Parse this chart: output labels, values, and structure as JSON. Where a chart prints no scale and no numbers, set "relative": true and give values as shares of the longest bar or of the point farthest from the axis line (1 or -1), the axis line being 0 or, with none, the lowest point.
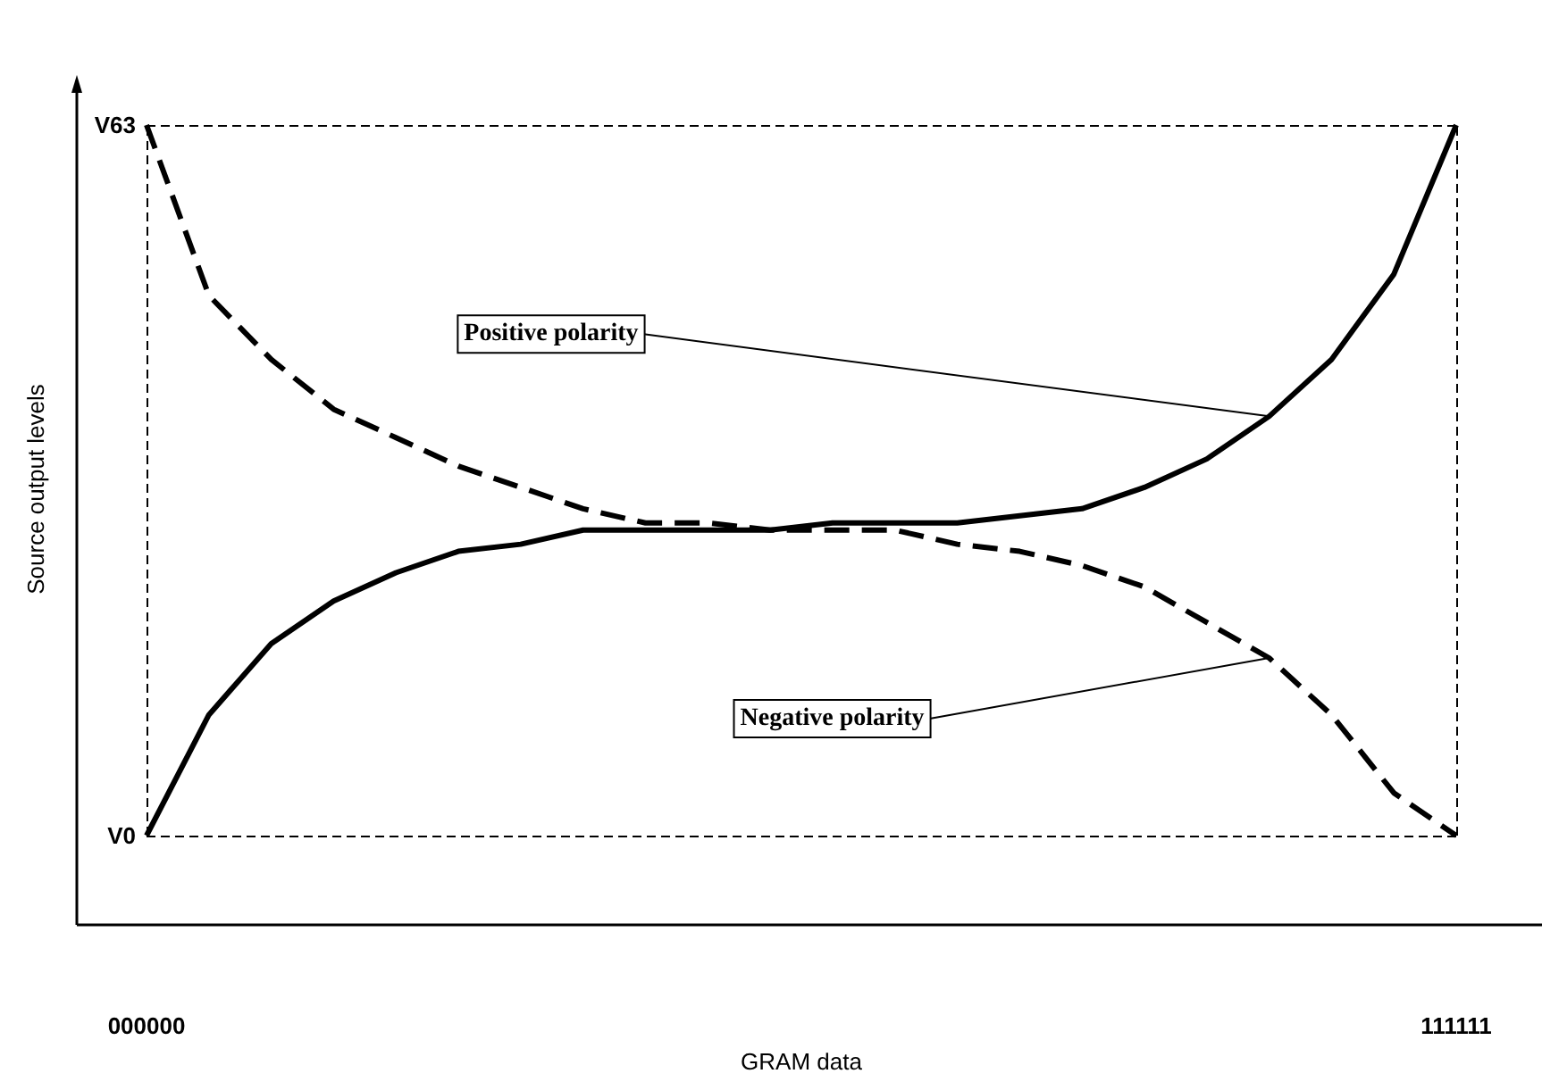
{
  "chart_data": {
    "type": "line",
    "xlabel": "GRAM data",
    "ylabel": "Source output levels",
    "relative": true,
    "categories": [
      "000000",
      null,
      null,
      null,
      null,
      null,
      null,
      null,
      null,
      null,
      null,
      null,
      null,
      null,
      null,
      null,
      null,
      null,
      null,
      null,
      null,
      "111111"
    ],
    "grid": false,
    "marker": "none",
    "series": [
      {
        "color": "#000000",
        "line_style": "solid",
        "values": [
          0,
          0.17,
          0.27,
          0.33,
          0.37,
          0.4,
          0.41,
          0.43,
          0.43,
          0.43,
          0.43,
          0.44,
          0.44,
          0.44,
          0.45,
          0.46,
          0.49,
          0.53,
          0.59,
          0.67,
          0.79,
          1
        ]
      },
      {
        "color": "#000000",
        "line_style": "dashed",
        "values": [
          1,
          0.76,
          0.67,
          0.6,
          0.56,
          0.52,
          0.49,
          0.46,
          0.44,
          0.44,
          0.43,
          0.43,
          0.43,
          0.41,
          0.4,
          0.38,
          0.35,
          0.3,
          0.25,
          0.17,
          0.06,
          0
        ]
      }
    ],
    "ref_lines": [
      {
        "axis": "y",
        "value": 1,
        "label": "V63",
        "color": "#000000",
        "line_style": "dashed"
      },
      {
        "axis": "y",
        "value": 0,
        "label": "V0",
        "color": "#000000",
        "line_style": "dashed"
      },
      {
        "axis": "x",
        "value": "000000",
        "color": "#000000",
        "line_style": "dashed"
      },
      {
        "axis": "x",
        "value": "111111",
        "color": "#000000",
        "line_style": "dashed"
      }
    ],
    "annotations": [
      "Positive polarity",
      "Negative polarity"
    ]
  }
}
